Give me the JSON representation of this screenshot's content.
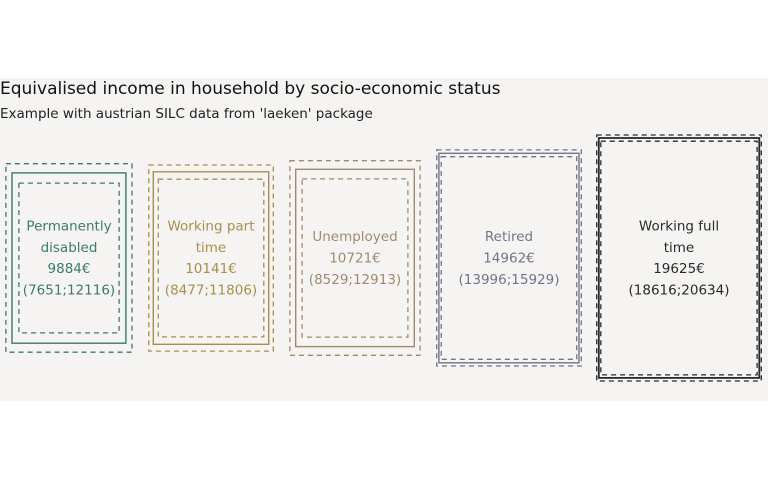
{
  "chart_data": {
    "type": "waffle",
    "title": "Equivalised income in household by socio-economic status",
    "subtitle": "Example with austrian SILC data from 'laeken' package",
    "currency": "€",
    "categories": [
      "Permanently disabled",
      "Working part time",
      "Unemployed",
      "Retired",
      "Working full time"
    ],
    "label_lines": [
      [
        "Permanently",
        "disabled"
      ],
      [
        "Working part",
        "time"
      ],
      [
        "Unemployed"
      ],
      [
        "Retired"
      ],
      [
        "Working full",
        "time"
      ]
    ],
    "values": [
      9884,
      10141,
      10721,
      14962,
      19625
    ],
    "value_labels": [
      "9884€",
      "10141€",
      "10721€",
      "14962€",
      "19625€"
    ],
    "ci_lower": [
      7651,
      8477,
      8529,
      13996,
      18616
    ],
    "ci_upper": [
      12116,
      11806,
      12913,
      15929,
      20634
    ],
    "ci_labels": [
      "(7651;12116)",
      "(8477;11806)",
      "(8529;12913)",
      "(13996;15929)",
      "(18616;20634)"
    ],
    "colors": [
      "#3d7a6d",
      "#a88f4c",
      "#a08a6e",
      "#75738a",
      "#2a2a2a"
    ],
    "text_colors": [
      "#3d7a6d",
      "#a88f4c",
      "#a08a6e",
      "#75738a",
      "#2a2a2a"
    ]
  }
}
